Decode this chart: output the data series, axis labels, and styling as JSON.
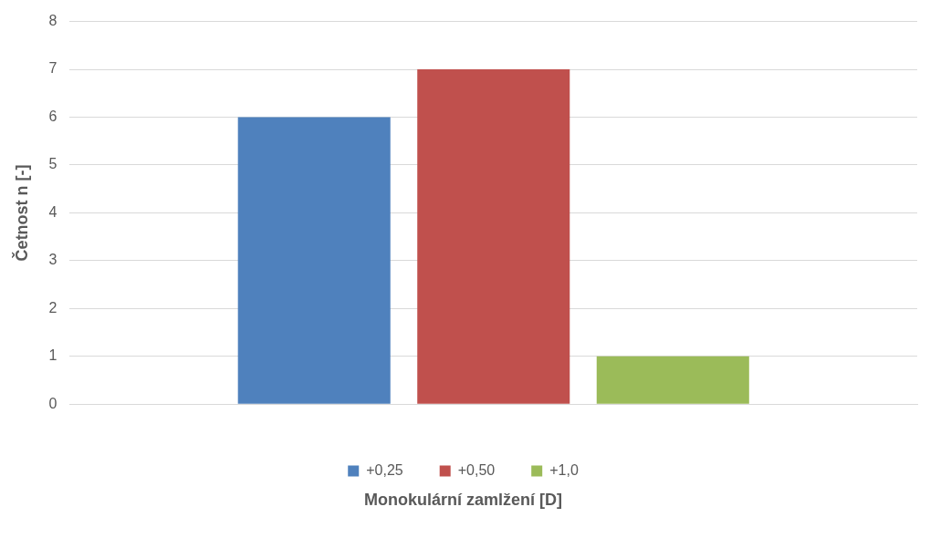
{
  "chart_data": {
    "type": "bar",
    "xlabel": "Monokulární zamlžení [D]",
    "ylabel": "Četnost n [-]",
    "categories": [
      null
    ],
    "series": [
      {
        "name": "+0,25",
        "color": "#4f81bd",
        "values": [
          6
        ]
      },
      {
        "name": "+0,50",
        "color": "#c0504d",
        "values": [
          7
        ]
      },
      {
        "name": "+1,0",
        "color": "#9bbb59",
        "values": [
          1
        ]
      }
    ],
    "ylim": [
      0,
      8
    ],
    "yticks": [
      0,
      1,
      2,
      3,
      4,
      5,
      6,
      7,
      8
    ],
    "grid": "y",
    "legend": "bottom"
  }
}
